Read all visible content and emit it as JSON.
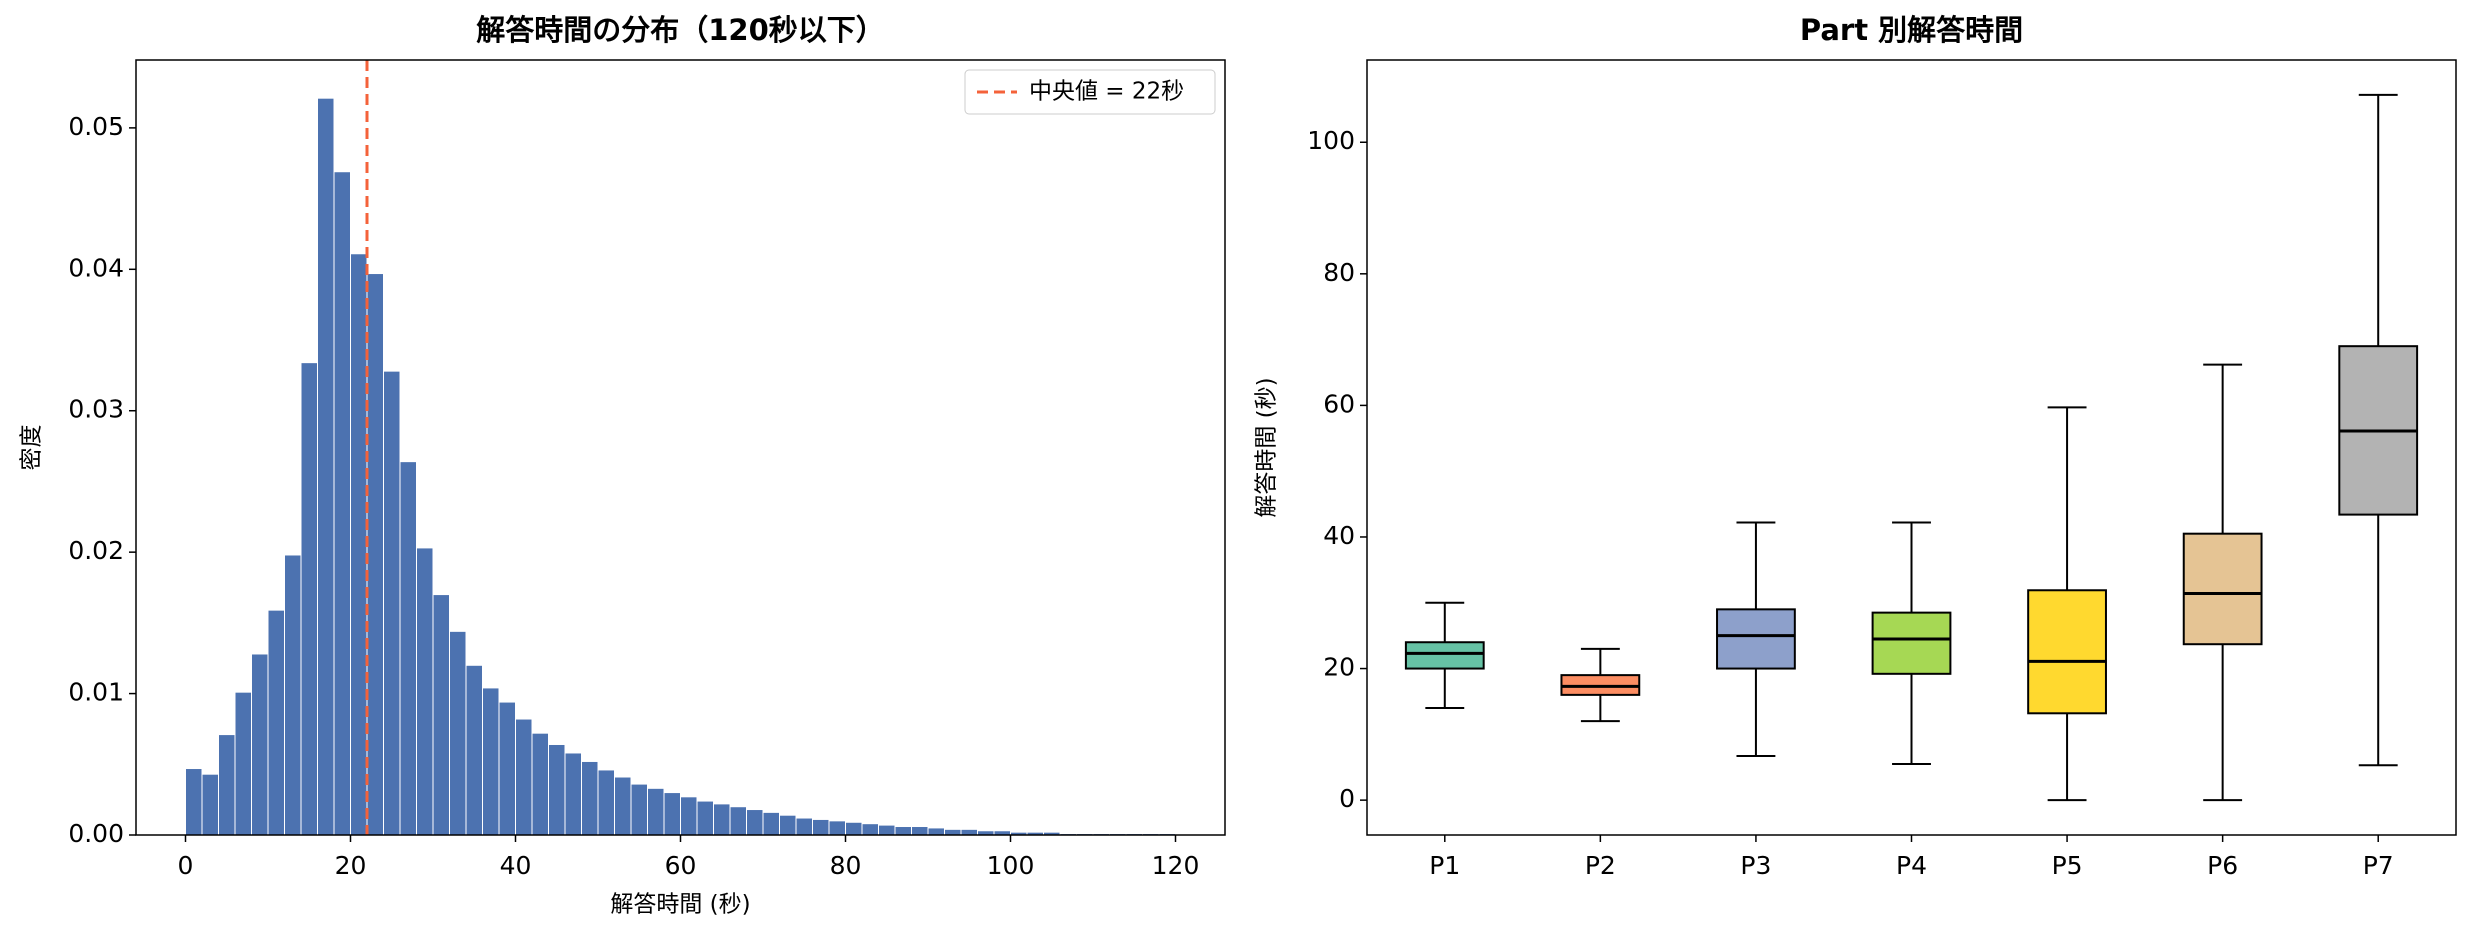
{
  "chart_data": [
    {
      "type": "histogram",
      "title": "解答時間の分布（120秒以下）",
      "x_label": "解答時間 (秒)",
      "y_label": "密度",
      "color": "#4c72b0",
      "bins": [
        0,
        2,
        4,
        6,
        8,
        10,
        12,
        14,
        16,
        18,
        20,
        22,
        24,
        26,
        28,
        30,
        32,
        34,
        36,
        38,
        40,
        42,
        44,
        46,
        48,
        50,
        52,
        54,
        56,
        58,
        60,
        62,
        64,
        66,
        68,
        70,
        72,
        74,
        76,
        78,
        80,
        82,
        84,
        86,
        88,
        90,
        92,
        94,
        96,
        98,
        100,
        102,
        104,
        106,
        108,
        110,
        112,
        114,
        116,
        118,
        120
      ],
      "counts": [
        0.0047,
        0.0043,
        0.0071,
        0.0101,
        0.0128,
        0.0159,
        0.0198,
        0.0334,
        0.0521,
        0.0469,
        0.0411,
        0.0397,
        0.0328,
        0.0264,
        0.0203,
        0.017,
        0.0144,
        0.012,
        0.0104,
        0.0094,
        0.0082,
        0.0072,
        0.0064,
        0.0058,
        0.0052,
        0.0046,
        0.0041,
        0.0036,
        0.0033,
        0.003,
        0.0027,
        0.0024,
        0.0022,
        0.002,
        0.0018,
        0.0016,
        0.0014,
        0.0012,
        0.0011,
        0.001,
        0.0009,
        0.0008,
        0.0007,
        0.0006,
        0.0006,
        0.0005,
        0.0004,
        0.0004,
        0.0003,
        0.0003,
        0.0002,
        0.0002,
        0.0002,
        0.0001,
        0.0001,
        0.0001,
        0.0001,
        0.0001,
        0.0001,
        0.0001
      ],
      "vline": {
        "value": 22,
        "label": "中央値 = 22秒",
        "color": "#f4623a"
      },
      "legend": "upper right",
      "xlim": [
        -6,
        126
      ],
      "xticks": [
        0,
        20,
        40,
        60,
        80,
        100,
        120
      ],
      "ylim": [
        0,
        0.0548
      ],
      "yticks": [
        {
          "value": 0,
          "label": "0.00"
        },
        {
          "value": 0.01,
          "label": "0.01"
        },
        {
          "value": 0.02,
          "label": "0.02"
        },
        {
          "value": 0.03,
          "label": "0.03"
        },
        {
          "value": 0.04,
          "label": "0.04"
        },
        {
          "value": 0.05,
          "label": "0.05"
        }
      ]
    },
    {
      "type": "box",
      "title": "Part 別解答時間",
      "y_label": "解答時間 (秒)",
      "categories": [
        "P1",
        "P2",
        "P3",
        "P4",
        "P5",
        "P6",
        "P7"
      ],
      "colors": [
        "#66c2a5",
        "#fc8d62",
        "#8da0cb",
        "#a6d854",
        "#ffd92f",
        "#e5c494",
        "#b3b3b3"
      ],
      "boxes": [
        {
          "low": 14,
          "q1": 20,
          "median": 22.3,
          "q3": 24,
          "high": 30
        },
        {
          "low": 12,
          "q1": 16,
          "median": 17.3,
          "q3": 19,
          "high": 23
        },
        {
          "low": 6.7,
          "q1": 20,
          "median": 25,
          "q3": 29,
          "high": 42.2
        },
        {
          "low": 5.5,
          "q1": 19.2,
          "median": 24.5,
          "q3": 28.5,
          "high": 42.2
        },
        {
          "low": 0,
          "q1": 13.2,
          "median": 21.1,
          "q3": 31.9,
          "high": 59.7
        },
        {
          "low": 0,
          "q1": 23.7,
          "median": 31.4,
          "q3": 40.5,
          "high": 66.2
        },
        {
          "low": 5.3,
          "q1": 43.4,
          "median": 56.1,
          "q3": 69,
          "high": 107.2
        }
      ],
      "ylim": [
        -5.3,
        112.5
      ],
      "yticks": [
        0,
        20,
        40,
        60,
        80,
        100
      ]
    }
  ]
}
